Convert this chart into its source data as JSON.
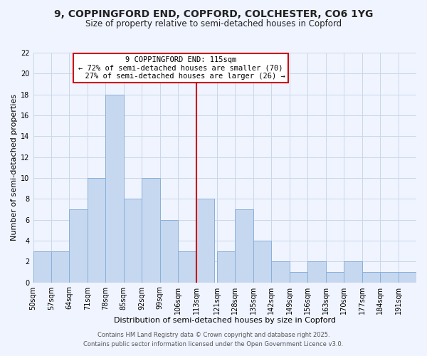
{
  "title": "9, COPPINGFORD END, COPFORD, COLCHESTER, CO6 1YG",
  "subtitle": "Size of property relative to semi-detached houses in Copford",
  "xlabel": "Distribution of semi-detached houses by size in Copford",
  "ylabel": "Number of semi-detached properties",
  "bin_labels": [
    "50sqm",
    "57sqm",
    "64sqm",
    "71sqm",
    "78sqm",
    "85sqm",
    "92sqm",
    "99sqm",
    "106sqm",
    "113sqm",
    "121sqm",
    "128sqm",
    "135sqm",
    "142sqm",
    "149sqm",
    "156sqm",
    "163sqm",
    "170sqm",
    "177sqm",
    "184sqm",
    "191sqm"
  ],
  "bin_edges": [
    50,
    57,
    64,
    71,
    78,
    85,
    92,
    99,
    106,
    113,
    121,
    128,
    135,
    142,
    149,
    156,
    163,
    170,
    177,
    184,
    191,
    198
  ],
  "counts": [
    3,
    3,
    7,
    10,
    18,
    8,
    10,
    6,
    3,
    8,
    3,
    7,
    4,
    2,
    1,
    2,
    1,
    2,
    1,
    1,
    1
  ],
  "bar_color": "#c5d8f0",
  "bar_edge_color": "#8ab0d8",
  "marker_value": 113,
  "marker_color": "#cc0000",
  "annotation_title": "9 COPPINGFORD END: 115sqm",
  "annotation_line1": "← 72% of semi-detached houses are smaller (70)",
  "annotation_line2": "  27% of semi-detached houses are larger (26) →",
  "annotation_box_color": "#ffffff",
  "annotation_box_edge_color": "#cc0000",
  "ylim": [
    0,
    22
  ],
  "yticks": [
    0,
    2,
    4,
    6,
    8,
    10,
    12,
    14,
    16,
    18,
    20,
    22
  ],
  "footer1": "Contains HM Land Registry data © Crown copyright and database right 2025.",
  "footer2": "Contains public sector information licensed under the Open Government Licence v3.0.",
  "bg_color": "#f0f4ff",
  "grid_color": "#c8d8e8",
  "title_fontsize": 10,
  "subtitle_fontsize": 8.5,
  "axis_label_fontsize": 8,
  "tick_fontsize": 7,
  "footer_fontsize": 6,
  "annotation_fontsize": 7.5
}
